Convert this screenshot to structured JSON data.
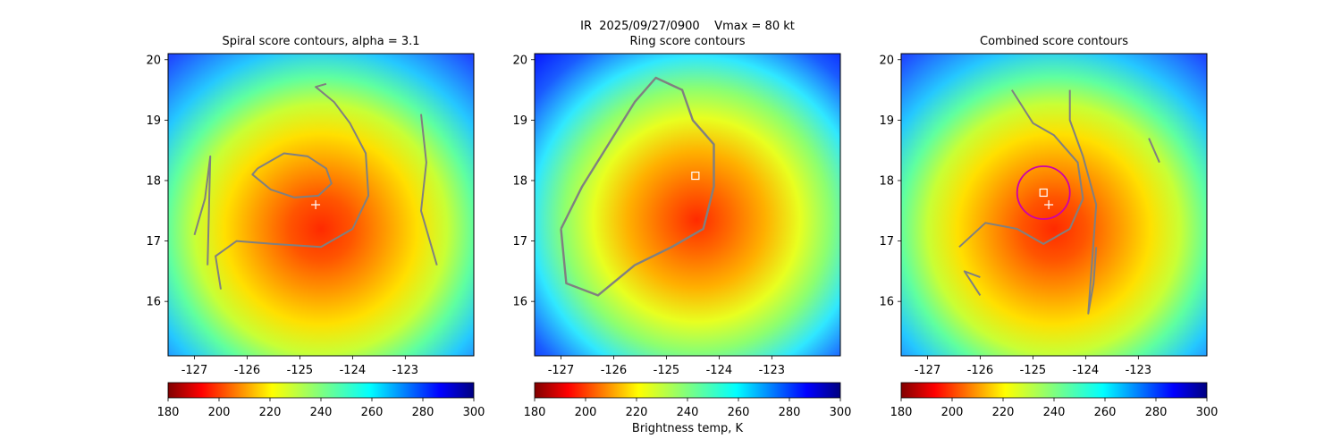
{
  "figure": {
    "suptitle": "IR  2025/09/27/0900    Vmax = 80 kt",
    "colorbar_label": "Brightness temp, K"
  },
  "chart_data": [
    {
      "type": "heatmap",
      "title": "Spiral score contours, alpha =  3.1",
      "xlabel": "",
      "ylabel": "",
      "xlim": [
        -127.5,
        -121.7
      ],
      "ylim": [
        15.1,
        20.1
      ],
      "xticks": [
        "-127",
        "-126",
        "-125",
        "-124",
        "-123"
      ],
      "yticks": [
        "16",
        "17",
        "18",
        "19",
        "20"
      ],
      "colormap": "jet_r",
      "clim": [
        180,
        300
      ],
      "colorbar_ticks": [
        "180",
        "200",
        "220",
        "240",
        "260",
        "280",
        "300"
      ],
      "storm_center": {
        "lon": -124.7,
        "lat": 17.6
      },
      "contours": [
        [
          [
            -125.8,
            18.2
          ],
          [
            -125.3,
            18.45
          ],
          [
            -124.85,
            18.4
          ],
          [
            -124.5,
            18.2
          ],
          [
            -124.4,
            17.95
          ],
          [
            -124.65,
            17.75
          ],
          [
            -125.1,
            17.72
          ],
          [
            -125.55,
            17.85
          ],
          [
            -125.9,
            18.1
          ],
          [
            -125.8,
            18.2
          ]
        ],
        [
          [
            -126.5,
            16.2
          ],
          [
            -126.6,
            16.75
          ],
          [
            -126.2,
            17.0
          ],
          [
            -125.5,
            16.95
          ],
          [
            -124.6,
            16.9
          ],
          [
            -124.0,
            17.2
          ],
          [
            -123.7,
            17.75
          ],
          [
            -123.75,
            18.45
          ],
          [
            -124.05,
            18.95
          ],
          [
            -124.35,
            19.3
          ],
          [
            -124.7,
            19.55
          ],
          [
            -124.5,
            19.6
          ]
        ],
        [
          [
            -127.0,
            17.1
          ],
          [
            -126.8,
            17.7
          ],
          [
            -126.7,
            18.4
          ],
          [
            -126.75,
            16.6
          ]
        ],
        [
          [
            -122.7,
            19.1
          ],
          [
            -122.6,
            18.3
          ],
          [
            -122.7,
            17.5
          ],
          [
            -122.4,
            16.6
          ]
        ]
      ]
    },
    {
      "type": "heatmap",
      "title": "Ring score contours",
      "xlabel": "",
      "ylabel": "",
      "xlim": [
        -127.5,
        -121.7
      ],
      "ylim": [
        15.1,
        20.1
      ],
      "xticks": [
        "-127",
        "-126",
        "-125",
        "-124",
        "-123"
      ],
      "yticks": [
        "16",
        "17",
        "18",
        "19",
        "20"
      ],
      "colormap": "jet_r",
      "clim": [
        180,
        300
      ],
      "colorbar_ticks": [
        "180",
        "200",
        "220",
        "240",
        "260",
        "280",
        "300"
      ],
      "ring_center": {
        "lon": -124.45,
        "lat": 18.08
      },
      "contours": [
        [
          [
            -127.0,
            17.2
          ],
          [
            -126.6,
            17.9
          ],
          [
            -126.1,
            18.6
          ],
          [
            -125.6,
            19.3
          ],
          [
            -125.2,
            19.7
          ],
          [
            -124.7,
            19.5
          ],
          [
            -124.5,
            19.0
          ],
          [
            -124.1,
            18.6
          ],
          [
            -124.1,
            17.9
          ],
          [
            -124.3,
            17.2
          ],
          [
            -124.9,
            16.9
          ],
          [
            -125.6,
            16.6
          ],
          [
            -126.3,
            16.1
          ],
          [
            -126.9,
            16.3
          ],
          [
            -127.0,
            17.2
          ]
        ]
      ]
    },
    {
      "type": "heatmap",
      "title": "Combined score contours",
      "xlabel": "",
      "ylabel": "",
      "xlim": [
        -127.5,
        -121.7
      ],
      "ylim": [
        15.1,
        20.1
      ],
      "xticks": [
        "-127",
        "-126",
        "-125",
        "-124",
        "-123"
      ],
      "yticks": [
        "16",
        "17",
        "18",
        "19",
        "20"
      ],
      "colormap": "jet_r",
      "clim": [
        180,
        300
      ],
      "colorbar_ticks": [
        "180",
        "200",
        "220",
        "240",
        "260",
        "280",
        "300"
      ],
      "storm_center": {
        "lon": -124.7,
        "lat": 17.6
      },
      "combined_center": {
        "lon": -124.8,
        "lat": 17.8
      },
      "circle_radius_deg": 0.5,
      "contours": [
        [
          [
            -126.4,
            16.9
          ],
          [
            -125.9,
            17.3
          ],
          [
            -125.3,
            17.2
          ],
          [
            -124.8,
            16.95
          ],
          [
            -124.3,
            17.2
          ],
          [
            -124.05,
            17.7
          ],
          [
            -124.15,
            18.3
          ],
          [
            -124.6,
            18.75
          ],
          [
            -125.0,
            18.95
          ],
          [
            -125.4,
            19.5
          ]
        ],
        [
          [
            -123.8,
            16.9
          ],
          [
            -123.85,
            16.3
          ],
          [
            -123.95,
            15.8
          ],
          [
            -123.8,
            17.6
          ],
          [
            -124.05,
            18.4
          ],
          [
            -124.3,
            19.0
          ],
          [
            -124.3,
            19.5
          ]
        ],
        [
          [
            -122.8,
            18.7
          ],
          [
            -122.6,
            18.3
          ]
        ],
        [
          [
            -126.0,
            16.4
          ],
          [
            -126.3,
            16.5
          ],
          [
            -126.0,
            16.1
          ]
        ]
      ]
    }
  ]
}
